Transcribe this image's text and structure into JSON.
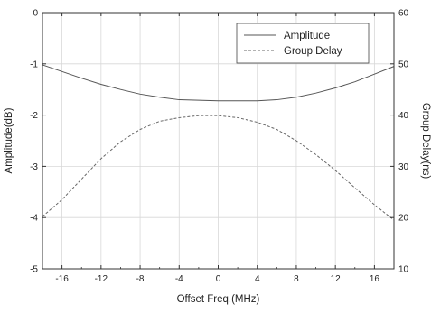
{
  "chart_data": {
    "type": "line",
    "title": "",
    "xlabel": "Offset Freq.(MHz)",
    "ylabel": "Amplitude(dB)",
    "y2label": "Group Delay(ns)",
    "xlim": [
      -18,
      18
    ],
    "ylim": [
      -5,
      0
    ],
    "y2lim": [
      10,
      60
    ],
    "xticks": [
      -16,
      -12,
      -8,
      -4,
      0,
      4,
      8,
      12,
      16
    ],
    "yticks": [
      0,
      -1,
      -2,
      -3,
      -4,
      -5
    ],
    "y2ticks": [
      60,
      50,
      40,
      30,
      20,
      10
    ],
    "grid": true,
    "legend_position": "top-right",
    "series": [
      {
        "name": "Amplitude",
        "axis": "left",
        "style": "solid",
        "color": "#555555",
        "x": [
          -18,
          -16,
          -14,
          -12,
          -10,
          -8,
          -6,
          -4,
          -2,
          0,
          2,
          4,
          6,
          8,
          10,
          12,
          14,
          16,
          18
        ],
        "values": [
          -1.02,
          -1.15,
          -1.28,
          -1.4,
          -1.5,
          -1.59,
          -1.65,
          -1.7,
          -1.71,
          -1.72,
          -1.72,
          -1.72,
          -1.7,
          -1.65,
          -1.57,
          -1.47,
          -1.35,
          -1.2,
          -1.05
        ]
      },
      {
        "name": "Group Delay",
        "axis": "right",
        "style": "dashed",
        "color": "#666666",
        "x": [
          -18,
          -16,
          -14,
          -12,
          -10,
          -8,
          -6,
          -4,
          -2,
          0,
          2,
          4,
          6,
          8,
          10,
          12,
          14,
          16,
          18
        ],
        "values": [
          20.2,
          23.5,
          27.5,
          31.5,
          34.8,
          37.2,
          38.8,
          39.5,
          39.9,
          39.9,
          39.5,
          38.6,
          37.2,
          35.0,
          32.3,
          29.2,
          25.8,
          22.5,
          19.5
        ]
      }
    ]
  }
}
